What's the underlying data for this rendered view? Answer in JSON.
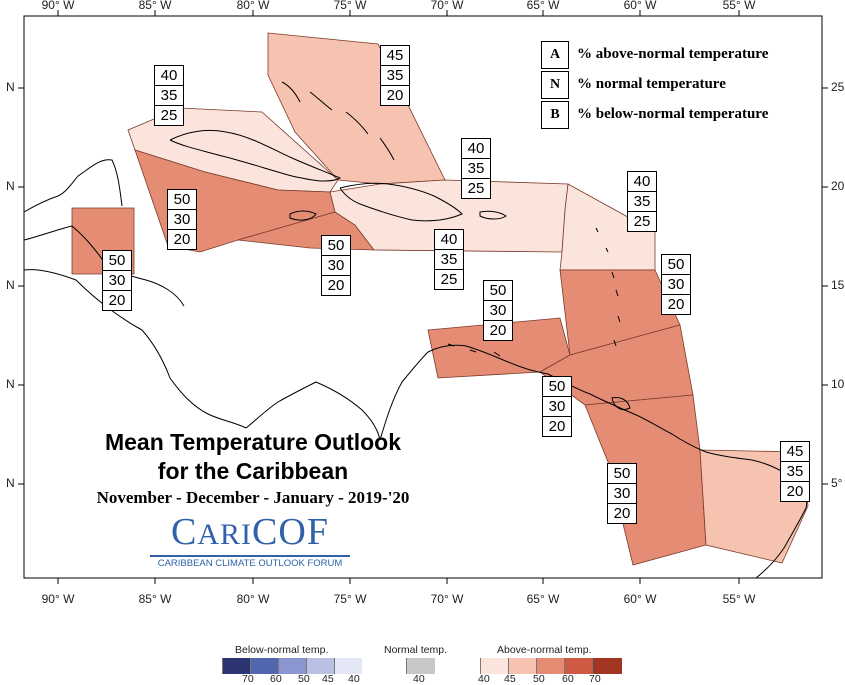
{
  "map": {
    "lon_labels": [
      "90° W",
      "85° W",
      "80° W",
      "75° W",
      "70° W",
      "65° W",
      "60° W",
      "55° W"
    ],
    "lat_labels_left": [
      "N",
      "N",
      "N",
      "N",
      "N"
    ],
    "lat_labels_right": [
      "25",
      "20",
      "15",
      "10",
      "5°"
    ],
    "regions": [
      {
        "id": "bahamas",
        "above": "45",
        "normal": "35",
        "below": "20",
        "color": "#f6c3b0"
      },
      {
        "id": "cuba",
        "above": "40",
        "normal": "35",
        "below": "25",
        "color": "#fbe4db"
      },
      {
        "id": "cayman-west",
        "above": "50",
        "normal": "30",
        "below": "20",
        "color": "#e58d74"
      },
      {
        "id": "belize",
        "above": "50",
        "normal": "30",
        "below": "20",
        "color": "#e58d74"
      },
      {
        "id": "jamaica",
        "above": "50",
        "normal": "30",
        "below": "20",
        "color": "#e58d74"
      },
      {
        "id": "hispaniola",
        "above": "40",
        "normal": "35",
        "below": "25",
        "color": "#fbe4db"
      },
      {
        "id": "hispaniola-north",
        "above": "40",
        "normal": "35",
        "below": "25",
        "color": "#fbe4db"
      },
      {
        "id": "leeward",
        "above": "40",
        "normal": "35",
        "below": "25",
        "color": "#fbe4db"
      },
      {
        "id": "windward",
        "above": "50",
        "normal": "30",
        "below": "20",
        "color": "#e58d74"
      },
      {
        "id": "abc-islands",
        "above": "50",
        "normal": "30",
        "below": "20",
        "color": "#e58d74"
      },
      {
        "id": "trinidad",
        "above": "50",
        "normal": "30",
        "below": "20",
        "color": "#e58d74"
      },
      {
        "id": "guyana",
        "above": "50",
        "normal": "30",
        "below": "20",
        "color": "#e58d74"
      },
      {
        "id": "suriname-guiana",
        "above": "45",
        "normal": "35",
        "below": "20",
        "color": "#f6c3b0"
      }
    ]
  },
  "legend": {
    "items": [
      {
        "key": "A",
        "text": "% above-normal temperature"
      },
      {
        "key": "N",
        "text": "% normal temperature"
      },
      {
        "key": "B",
        "text": "% below-normal temperature"
      }
    ]
  },
  "title": {
    "line1": "Mean Temperature Outlook",
    "line2": "for the Caribbean",
    "period": "November - December - January - 2019-'20"
  },
  "logo": {
    "name_part1": "C",
    "name_part2": "ARI",
    "name_part3": "COF",
    "subtitle": "CARIBBEAN CLIMATE OUTLOOK FORUM"
  },
  "colorbar": {
    "below_title": "Below-normal temp.",
    "normal_title": "Normal temp.",
    "above_title": "Above-normal temp.",
    "below_ticks": [
      "70",
      "60",
      "50",
      "45",
      "40"
    ],
    "normal_ticks": [
      "40"
    ],
    "above_ticks": [
      "40",
      "45",
      "50",
      "60",
      "70"
    ],
    "below_colors": [
      "#2c3572",
      "#5366b0",
      "#8b95cf",
      "#b9c0e3",
      "#e3e6f4"
    ],
    "normal_color": "#c8c8c8",
    "above_colors": [
      "#fbe4db",
      "#f6c3b0",
      "#e58d74",
      "#cf5a44",
      "#a33622"
    ]
  }
}
